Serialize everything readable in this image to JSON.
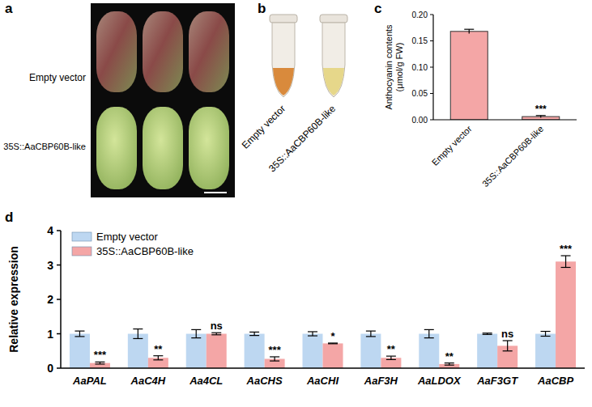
{
  "photos": [
    {
      "panel": "a",
      "labels": [
        "Empty vector",
        "35S::AaCBP60B-like"
      ]
    },
    {
      "panel": "b",
      "labels": [
        "Empty vector",
        "35S::AaCBP60B-like"
      ]
    }
  ],
  "chart_data": [
    {
      "panel": "c",
      "type": "bar",
      "categories": [
        "Empty vector",
        "35S::AaCBP60B-like"
      ],
      "values": [
        0.168,
        0.006
      ],
      "errors": [
        0.004,
        0.002
      ],
      "color": "#f4a6a6",
      "y_label": [
        "Anthocyanin contents",
        "(μmol/g FW)"
      ],
      "ylim": [
        0,
        0.2
      ],
      "yticks": [
        {
          "value": 0,
          "label": "0.00"
        },
        {
          "value": 0.05,
          "label": "0.05"
        },
        {
          "value": 0.1,
          "label": "0.10"
        },
        {
          "value": 0.15,
          "label": "0.15"
        },
        {
          "value": 0.2,
          "label": "0.20"
        }
      ],
      "annotations": [
        {
          "index": 1,
          "text": "***"
        }
      ]
    },
    {
      "panel": "d",
      "type": "bar",
      "categories": [
        "AaPAL",
        "AaC4H",
        "Aa4CL",
        "AaCHS",
        "AaCHI",
        "AaF3H",
        "AaLDOX",
        "AaF3GT",
        "AaCBP"
      ],
      "series": [
        {
          "name": "Empty vector",
          "color": "#bdd7f1",
          "values": [
            1,
            1,
            1,
            1,
            1,
            1,
            1,
            1,
            1
          ],
          "errors": [
            0.08,
            0.14,
            0.12,
            0.05,
            0.06,
            0.08,
            0.12,
            0.02,
            0.07
          ]
        },
        {
          "name": "35S::AaCBP60B-like",
          "color": "#f4a6a6",
          "values": [
            0.15,
            0.3,
            1.0,
            0.27,
            0.72,
            0.3,
            0.12,
            0.65,
            3.1
          ],
          "errors": [
            0.03,
            0.06,
            0.03,
            0.06,
            0.01,
            0.05,
            0.03,
            0.15,
            0.17
          ],
          "annotations": [
            "***",
            "**",
            "ns",
            "***",
            "*",
            "**",
            "**",
            "ns",
            "***"
          ]
        }
      ],
      "y_label": "Relative expression",
      "ylim": [
        0,
        4
      ],
      "yticks": [
        0,
        1,
        2,
        3,
        4
      ],
      "legend": "upper left"
    }
  ]
}
